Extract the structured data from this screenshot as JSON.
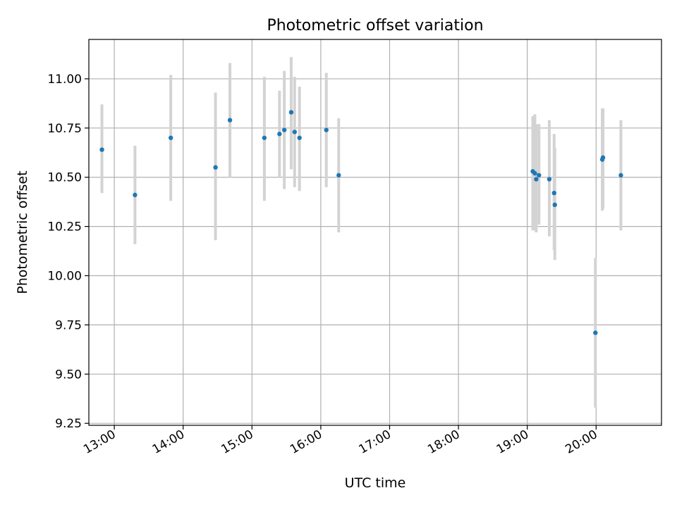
{
  "chart_data": {
    "type": "scatter",
    "title": "Photometric offset variation",
    "xlabel": "UTC time",
    "ylabel": "Photometric offset",
    "x_unit": "hours UTC",
    "xlim": [
      12.63,
      20.95
    ],
    "ylim": [
      9.24,
      11.2
    ],
    "xticks": [
      13,
      14,
      15,
      16,
      17,
      18,
      19,
      20
    ],
    "xtick_labels": [
      "13:00",
      "14:00",
      "15:00",
      "16:00",
      "17:00",
      "18:00",
      "19:00",
      "20:00"
    ],
    "yticks": [
      9.25,
      9.5,
      9.75,
      10.0,
      10.25,
      10.5,
      10.75,
      11.0
    ],
    "ytick_labels": [
      "9.25",
      "9.50",
      "9.75",
      "10.00",
      "10.25",
      "10.50",
      "10.75",
      "11.00"
    ],
    "grid": true,
    "series": [
      {
        "color": "#1f77b4",
        "errorbar_color": "#d3d3d3",
        "points": [
          {
            "x": 12.82,
            "y": 10.64,
            "ylo": 10.42,
            "yhi": 10.87
          },
          {
            "x": 13.3,
            "y": 10.41,
            "ylo": 10.16,
            "yhi": 10.66
          },
          {
            "x": 13.82,
            "y": 10.7,
            "ylo": 10.38,
            "yhi": 11.02
          },
          {
            "x": 14.47,
            "y": 10.55,
            "ylo": 10.18,
            "yhi": 10.93
          },
          {
            "x": 14.68,
            "y": 10.79,
            "ylo": 10.5,
            "yhi": 11.08
          },
          {
            "x": 15.18,
            "y": 10.7,
            "ylo": 10.38,
            "yhi": 11.01
          },
          {
            "x": 15.4,
            "y": 10.72,
            "ylo": 10.5,
            "yhi": 10.94
          },
          {
            "x": 15.47,
            "y": 10.74,
            "ylo": 10.44,
            "yhi": 11.04
          },
          {
            "x": 15.57,
            "y": 10.83,
            "ylo": 10.54,
            "yhi": 11.11
          },
          {
            "x": 15.62,
            "y": 10.73,
            "ylo": 10.45,
            "yhi": 11.01
          },
          {
            "x": 15.69,
            "y": 10.7,
            "ylo": 10.43,
            "yhi": 10.96
          },
          {
            "x": 16.08,
            "y": 10.74,
            "ylo": 10.45,
            "yhi": 11.03
          },
          {
            "x": 16.26,
            "y": 10.51,
            "ylo": 10.22,
            "yhi": 10.8
          },
          {
            "x": 19.08,
            "y": 10.53,
            "ylo": 10.23,
            "yhi": 10.81
          },
          {
            "x": 19.11,
            "y": 10.52,
            "ylo": 10.23,
            "yhi": 10.82
          },
          {
            "x": 19.13,
            "y": 10.49,
            "ylo": 10.22,
            "yhi": 10.77
          },
          {
            "x": 19.17,
            "y": 10.51,
            "ylo": 10.26,
            "yhi": 10.77
          },
          {
            "x": 19.32,
            "y": 10.49,
            "ylo": 10.2,
            "yhi": 10.79
          },
          {
            "x": 19.39,
            "y": 10.42,
            "ylo": 10.13,
            "yhi": 10.72
          },
          {
            "x": 19.4,
            "y": 10.36,
            "ylo": 10.08,
            "yhi": 10.65
          },
          {
            "x": 19.99,
            "y": 9.71,
            "ylo": 9.33,
            "yhi": 10.09
          },
          {
            "x": 20.09,
            "y": 10.59,
            "ylo": 10.33,
            "yhi": 10.85
          },
          {
            "x": 20.1,
            "y": 10.6,
            "ylo": 10.34,
            "yhi": 10.85
          },
          {
            "x": 20.36,
            "y": 10.51,
            "ylo": 10.23,
            "yhi": 10.79
          }
        ]
      }
    ]
  }
}
